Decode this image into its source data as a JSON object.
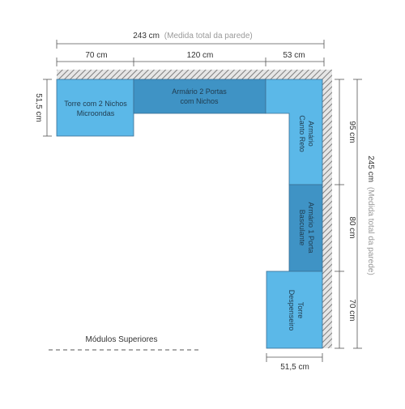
{
  "dimensions": {
    "total_width": {
      "value": "243 cm",
      "note": "(Medida total da parede)"
    },
    "top_segments": [
      "70 cm",
      "120 cm",
      "53 cm"
    ],
    "left_height": "51,5 cm",
    "total_height": {
      "value": "245 cm",
      "note": "(Medida total da parede)"
    },
    "right_segments": [
      "95 cm",
      "80 cm",
      "70 cm"
    ],
    "bottom_width": "51,5 cm"
  },
  "modules": {
    "torre_micro": [
      "Torre com 2 Nichos",
      "Microondas"
    ],
    "armario_2p": [
      "Armário 2 Portas",
      "com Nichos"
    ],
    "armario_canto": [
      "Armário",
      "Canto Reto"
    ],
    "armario_basc": [
      "Armário 1 Porta",
      "Basculante"
    ],
    "torre_desp": [
      "Torre",
      "Despenseiro"
    ]
  },
  "legend": {
    "label": "Módulos Superiores"
  },
  "colors": {
    "light_blue": "#5bb8e8",
    "dark_blue": "#3f93c5",
    "outline": "#3a6f93",
    "wall_hatch": "#8c8c8c",
    "dimension_line": "#555555"
  }
}
